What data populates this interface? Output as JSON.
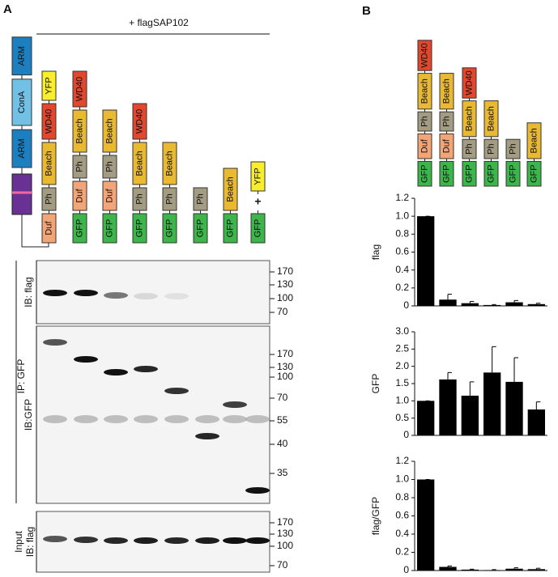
{
  "panel_a": {
    "label": "A",
    "header": "+ flagSAP102",
    "bait_domains": [
      {
        "label": "ARM",
        "color": "#1c7fc0"
      },
      {
        "label": "ConA",
        "color": "#72c0e6"
      },
      {
        "label": "ARM",
        "color": "#1c7fc0"
      }
    ],
    "constructs": [
      {
        "domains": [
          {
            "label": "Duf",
            "color": "#f2a577"
          },
          {
            "label": "Ph",
            "color": "#a39c82"
          },
          {
            "label": "Beach",
            "color": "#e9b934"
          },
          {
            "label": "WD40",
            "color": "#e0472c"
          },
          {
            "label": "YFP",
            "color": "#f8ee2c"
          }
        ]
      },
      {
        "domains": [
          {
            "label": "GFP",
            "color": "#3db54b"
          },
          {
            "label": "Duf",
            "color": "#f2a577"
          },
          {
            "label": "Ph",
            "color": "#a39c82"
          },
          {
            "label": "Beach",
            "color": "#e9b934"
          },
          {
            "label": "WD40",
            "color": "#e0472c"
          }
        ]
      },
      {
        "domains": [
          {
            "label": "GFP",
            "color": "#3db54b"
          },
          {
            "label": "Duf",
            "color": "#f2a577"
          },
          {
            "label": "Ph",
            "color": "#a39c82"
          },
          {
            "label": "Beach",
            "color": "#e9b934"
          }
        ]
      },
      {
        "domains": [
          {
            "label": "GFP",
            "color": "#3db54b"
          },
          {
            "label": "Ph",
            "color": "#a39c82"
          },
          {
            "label": "Beach",
            "color": "#e9b934"
          },
          {
            "label": "WD40",
            "color": "#e0472c"
          }
        ]
      },
      {
        "domains": [
          {
            "label": "GFP",
            "color": "#3db54b"
          },
          {
            "label": "Ph",
            "color": "#a39c82"
          },
          {
            "label": "Beach",
            "color": "#e9b934"
          }
        ]
      },
      {
        "domains": [
          {
            "label": "GFP",
            "color": "#3db54b"
          },
          {
            "label": "Ph",
            "color": "#a39c82"
          }
        ]
      },
      {
        "domains": [
          {
            "label": "GFP",
            "color": "#3db54b"
          },
          {
            "label": "Beach",
            "color": "#e9b934"
          }
        ]
      },
      {
        "domains": [
          {
            "label": "GFP",
            "color": "#3db54b"
          },
          {
            "label": "+"
          },
          {
            "label": "YFP",
            "color": "#f8ee2c"
          }
        ]
      }
    ],
    "blots": [
      {
        "labels": [
          "IB: flag"
        ],
        "markers": [
          "170",
          "130",
          "100",
          "70"
        ]
      },
      {
        "labels": [
          "IB:GFP"
        ],
        "markers": [
          "170",
          "130",
          "100",
          "70",
          "55",
          "40",
          "35"
        ]
      },
      {
        "labels": [
          "Input",
          "IB: flag"
        ],
        "markers": [
          "170",
          "130",
          "100",
          "70"
        ]
      }
    ],
    "ip_label": "IP: GFP"
  },
  "panel_b": {
    "label": "B",
    "constructs": [
      {
        "domains": [
          {
            "label": "GFP",
            "color": "#3db54b"
          },
          {
            "label": "Duf",
            "color": "#f2a577"
          },
          {
            "label": "Ph",
            "color": "#a39c82"
          },
          {
            "label": "Beach",
            "color": "#e9b934"
          },
          {
            "label": "WD40",
            "color": "#e0472c"
          }
        ]
      },
      {
        "domains": [
          {
            "label": "GFP",
            "color": "#3db54b"
          },
          {
            "label": "Duf",
            "color": "#f2a577"
          },
          {
            "label": "Ph",
            "color": "#a39c82"
          },
          {
            "label": "Beach",
            "color": "#e9b934"
          }
        ]
      },
      {
        "domains": [
          {
            "label": "GFP",
            "color": "#3db54b"
          },
          {
            "label": "Ph",
            "color": "#a39c82"
          },
          {
            "label": "Beach",
            "color": "#e9b934"
          },
          {
            "label": "WD40",
            "color": "#e0472c"
          }
        ]
      },
      {
        "domains": [
          {
            "label": "GFP",
            "color": "#3db54b"
          },
          {
            "label": "Ph",
            "color": "#a39c82"
          },
          {
            "label": "Beach",
            "color": "#e9b934"
          }
        ]
      },
      {
        "domains": [
          {
            "label": "GFP",
            "color": "#3db54b"
          },
          {
            "label": "Ph",
            "color": "#a39c82"
          }
        ]
      },
      {
        "domains": [
          {
            "label": "GFP",
            "color": "#3db54b"
          },
          {
            "label": "Beach",
            "color": "#e9b934"
          }
        ]
      }
    ]
  },
  "chart_data": [
    {
      "type": "bar",
      "y_label": "flag",
      "categories": [
        null,
        null,
        null,
        null,
        null,
        null
      ],
      "values": [
        1.0,
        0.07,
        0.03,
        0.01,
        0.04,
        0.02
      ],
      "errors": [
        0,
        0.06,
        0.02,
        0.005,
        0.02,
        0.01
      ],
      "color": "#000000",
      "ylim": [
        0,
        1.2
      ],
      "yticks": [
        0,
        0.2,
        0.4,
        0.6,
        0.8,
        {
          "value": 1,
          "label": "1.0"
        },
        1.2
      ]
    },
    {
      "type": "bar",
      "y_label": "GFP",
      "categories": [
        null,
        null,
        null,
        null,
        null,
        null
      ],
      "values": [
        1.0,
        1.62,
        1.15,
        1.82,
        1.55,
        0.75
      ],
      "errors": [
        0,
        0.2,
        0.4,
        0.75,
        0.7,
        0.22
      ],
      "color": "#000000",
      "ylim": [
        0,
        3
      ],
      "yticks": [
        0,
        0.5,
        {
          "value": 1,
          "label": "1.0"
        },
        1.5,
        {
          "value": 2,
          "label": "2.0"
        },
        2.5,
        {
          "value": 3,
          "label": "3.0"
        }
      ]
    },
    {
      "type": "bar",
      "y_label": "flag/GFP",
      "categories": [
        null,
        null,
        null,
        null,
        null,
        null
      ],
      "values": [
        1.0,
        0.04,
        0.01,
        0.005,
        0.02,
        0.015
      ],
      "errors": [
        0,
        0.01,
        0.005,
        0.005,
        0.01,
        0.01
      ],
      "color": "#000000",
      "ylim": [
        0,
        1.2
      ],
      "yticks": [
        0,
        0.2,
        0.4,
        0.6,
        0.8,
        {
          "value": 1,
          "label": "1.0"
        },
        1.2
      ]
    }
  ]
}
